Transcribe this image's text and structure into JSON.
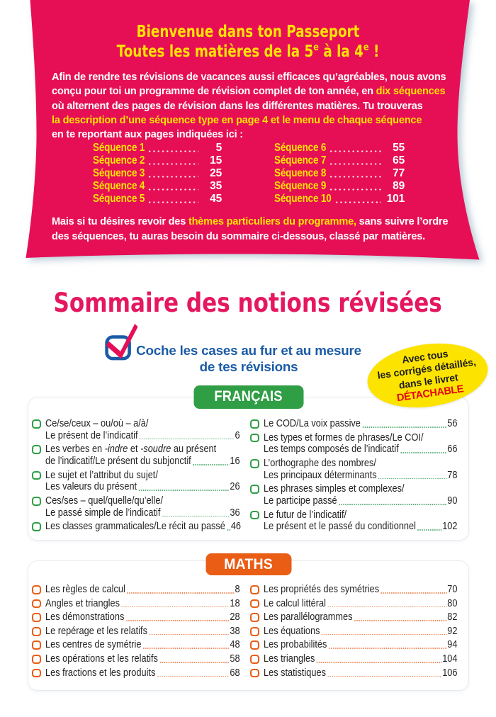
{
  "palette": {
    "pink": "#e60f56",
    "yellow": "#ffe205",
    "sommaire-pink": "#e5175f",
    "blue": "#1a5ba6",
    "green": "#2f9e45",
    "orange": "#e95d15",
    "ink": "#221f20",
    "border": "#e7ebef",
    "badge-yellow": "#fde300",
    "red": "#e30613",
    "dot-green": "#4fa96e",
    "dot-orange": "#eb8350"
  },
  "banner": {
    "title": {
      "line1": "Bienvenue dans ton Passeport",
      "line2": {
        "a": "Toutes les matières de la 5",
        "sup1": "e",
        "b": " à la 4",
        "sup2": "e",
        "c": " !"
      }
    },
    "intro": {
      "lines": [
        [
          {
            "text": "Afin de rendre tes révisions de vacances aussi efficaces qu’agréables, nous avons",
            "highlight": false
          }
        ],
        [
          {
            "text": "conçu pour toi un programme de révision complet de ton année, en ",
            "highlight": false
          },
          {
            "text": "dix séquences",
            "highlight": true
          }
        ],
        [
          {
            "text": "où alternent des pages de révision dans les différentes matières. Tu trouveras",
            "highlight": false
          }
        ],
        [
          {
            "text": "la description d’une séquence type en page 4 et le menu de chaque séquence",
            "highlight": true
          }
        ],
        [
          {
            "text": "en te reportant aux pages indiquées ici :",
            "highlight": false
          }
        ]
      ]
    },
    "sequences": {
      "col1": [
        {
          "label": "Séquence 1",
          "page": "5"
        },
        {
          "label": "Séquence 2",
          "page": "15"
        },
        {
          "label": "Séquence 3",
          "page": "25"
        },
        {
          "label": "Séquence 4",
          "page": "35"
        },
        {
          "label": "Séquence 5",
          "page": "45"
        }
      ],
      "col2": [
        {
          "label": "Séquence 6",
          "page": "55"
        },
        {
          "label": "Séquence 7",
          "page": "65"
        },
        {
          "label": "Séquence 8",
          "page": "77"
        },
        {
          "label": "Séquence 9",
          "page": "89"
        },
        {
          "label": "Séquence 10",
          "page": "101"
        }
      ]
    },
    "outro": {
      "lines": [
        [
          {
            "text": "Mais si tu désires revoir des ",
            "highlight": false
          },
          {
            "text": "thèmes particuliers du programme,",
            "highlight": true
          },
          {
            "text": " sans suivre l’ordre",
            "highlight": false
          }
        ],
        [
          {
            "text": "des séquences, tu auras besoin du sommaire ci-dessous, classé par matières.",
            "highlight": false
          }
        ]
      ]
    }
  },
  "sommaire": {
    "title": "Sommaire des notions révisées",
    "instruction_line1": "Coche les cases au fur et au mesure",
    "instruction_line2": "de tes révisions",
    "badge": {
      "line1": "Avec tous",
      "line2": "les corrigés détaillés,",
      "line3": "dans le livret",
      "line4": "DÉTACHABLE"
    }
  },
  "sections": [
    {
      "id": "francais",
      "title": "FRANÇAIS",
      "columns": [
        [
          {
            "lines": [
              [
                {
                  "t": "Ce/se/ceux – ou/où – a/à/"
                }
              ],
              [
                {
                  "t": "Le présent de l’indicatif"
                }
              ]
            ],
            "page": "6"
          },
          {
            "lines": [
              [
                {
                  "t": "Les verbes en "
                },
                {
                  "t": "-indre",
                  "it": true
                },
                {
                  "t": " et "
                },
                {
                  "t": "-soudre",
                  "it": true
                },
                {
                  "t": " au présent"
                }
              ],
              [
                {
                  "t": "de l’indicatif/Le présent du subjonctif"
                }
              ]
            ],
            "page": "16"
          },
          {
            "lines": [
              [
                {
                  "t": "Le sujet et l’attribut du sujet/"
                }
              ],
              [
                {
                  "t": "Les valeurs du présent"
                }
              ]
            ],
            "page": "26"
          },
          {
            "lines": [
              [
                {
                  "t": "Ces/ses – quel/quelle/qu’elle/"
                }
              ],
              [
                {
                  "t": "Le passé simple de l’indicatif"
                }
              ]
            ],
            "page": "36"
          },
          {
            "lines": [
              [
                {
                  "t": "Les classes grammaticales/Le récit au passé"
                }
              ]
            ],
            "page": "46"
          }
        ],
        [
          {
            "lines": [
              [
                {
                  "t": "Le COD/La voix passive"
                }
              ]
            ],
            "page": "56"
          },
          {
            "lines": [
              [
                {
                  "t": "Les types et formes de phrases/Le COI/"
                }
              ],
              [
                {
                  "t": "Les temps composés de l’indicatif"
                }
              ]
            ],
            "page": "66"
          },
          {
            "lines": [
              [
                {
                  "t": "L’orthographe des nombres/"
                }
              ],
              [
                {
                  "t": "Les principaux déterminants"
                }
              ]
            ],
            "page": "78"
          },
          {
            "lines": [
              [
                {
                  "t": "Les phrases simples et complexes/"
                }
              ],
              [
                {
                  "t": "Le participe passé"
                }
              ]
            ],
            "page": "90"
          },
          {
            "lines": [
              [
                {
                  "t": "Le futur de l’indicatif/"
                }
              ],
              [
                {
                  "t": "Le présent et le passé du conditionnel"
                }
              ]
            ],
            "page": "102"
          }
        ]
      ]
    },
    {
      "id": "maths",
      "title": "MATHS",
      "columns": [
        [
          {
            "lines": [
              [
                {
                  "t": "Les règles de calcul"
                }
              ]
            ],
            "page": "8"
          },
          {
            "lines": [
              [
                {
                  "t": "Angles et triangles"
                }
              ]
            ],
            "page": "18"
          },
          {
            "lines": [
              [
                {
                  "t": "Les démonstrations"
                }
              ]
            ],
            "page": "28"
          },
          {
            "lines": [
              [
                {
                  "t": "Le repérage et les relatifs"
                }
              ]
            ],
            "page": "38"
          },
          {
            "lines": [
              [
                {
                  "t": "Les centres de symétrie"
                }
              ]
            ],
            "page": "48"
          },
          {
            "lines": [
              [
                {
                  "t": "Les opérations et les relatifs"
                }
              ]
            ],
            "page": "58"
          },
          {
            "lines": [
              [
                {
                  "t": "Les fractions et les produits"
                }
              ]
            ],
            "page": "68"
          }
        ],
        [
          {
            "lines": [
              [
                {
                  "t": "Les propriétés des symétries"
                }
              ]
            ],
            "page": "70"
          },
          {
            "lines": [
              [
                {
                  "t": "Le calcul littéral"
                }
              ]
            ],
            "page": "80"
          },
          {
            "lines": [
              [
                {
                  "t": "Les parallélogrammes"
                }
              ]
            ],
            "page": "82"
          },
          {
            "lines": [
              [
                {
                  "t": "Les équations"
                }
              ]
            ],
            "page": "92"
          },
          {
            "lines": [
              [
                {
                  "t": "Les probabilités"
                }
              ]
            ],
            "page": "94"
          },
          {
            "lines": [
              [
                {
                  "t": "Les triangles"
                }
              ]
            ],
            "page": "104"
          },
          {
            "lines": [
              [
                {
                  "t": "Les statistiques"
                }
              ]
            ],
            "page": "106"
          }
        ]
      ]
    }
  ]
}
